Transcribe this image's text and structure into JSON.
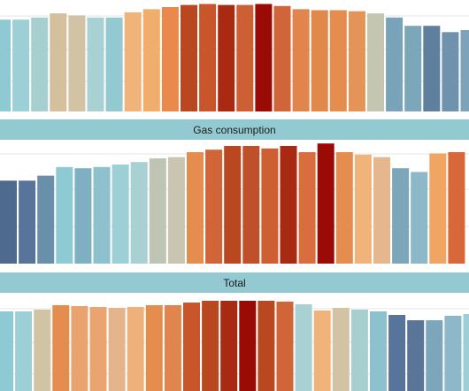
{
  "chart_data": [
    {
      "type": "bar",
      "title": "",
      "grid": true,
      "ylim": [
        0,
        1.0
      ],
      "values": [
        0.88,
        0.88,
        0.9,
        0.94,
        0.92,
        0.9,
        0.9,
        0.95,
        0.98,
        1.0,
        1.02,
        1.03,
        1.02,
        1.02,
        1.03,
        1.01,
        0.98,
        0.97,
        0.97,
        0.96,
        0.94,
        0.9,
        0.82,
        0.82,
        0.76,
        0.78
      ],
      "colors": [
        "#8ecad3",
        "#9ccfd6",
        "#a7cfd0",
        "#d5c09e",
        "#d2c3a4",
        "#a9d0d2",
        "#93c9d1",
        "#f0b47a",
        "#f1ad6b",
        "#e9894c",
        "#b9471f",
        "#c8562a",
        "#a92a12",
        "#cc5f33",
        "#9b0b05",
        "#cf6538",
        "#df854d",
        "#e1894b",
        "#e58d4f",
        "#e59458",
        "#c5c6b2",
        "#78a3b8",
        "#7ca6b9",
        "#5f7f9e",
        "#6f93ad",
        "#7da3b8"
      ]
    },
    {
      "type": "bar",
      "title": "Gas consumption",
      "grid": true,
      "ylim": [
        0,
        1.0
      ],
      "values": [
        0.67,
        0.67,
        0.71,
        0.78,
        0.77,
        0.78,
        0.8,
        0.82,
        0.85,
        0.86,
        0.9,
        0.92,
        0.95,
        0.95,
        0.93,
        0.95,
        0.9,
        0.97,
        0.9,
        0.88,
        0.86,
        0.77,
        0.74,
        0.89,
        0.9
      ],
      "colors": [
        "#4f6a8f",
        "#58749a",
        "#6a8fab",
        "#8ecad3",
        "#7fb0c1",
        "#8cc1cd",
        "#9ccfd6",
        "#a9d0d2",
        "#bec5b4",
        "#c9c5b0",
        "#e58d4f",
        "#cf6538",
        "#b9471f",
        "#c0502a",
        "#cd5f33",
        "#a92a12",
        "#d96d3e",
        "#9b0b05",
        "#e58d4f",
        "#f0b47a",
        "#e5b78e",
        "#7ca6b9",
        "#8cb8c8",
        "#f0a662",
        "#d8683a"
      ]
    },
    {
      "type": "bar",
      "title": "Total",
      "grid": true,
      "ylim": [
        0,
        1.0
      ],
      "values": [
        0.9,
        0.9,
        0.92,
        0.97,
        0.96,
        0.95,
        0.94,
        0.95,
        0.97,
        0.97,
        1.0,
        1.02,
        1.02,
        1.02,
        1.02,
        1.01,
        0.98,
        0.91,
        0.94,
        0.92,
        0.9,
        0.86,
        0.8,
        0.8,
        0.85,
        0.87
      ],
      "colors": [
        "#8ecad3",
        "#9ccfd6",
        "#d2c3a4",
        "#e58d4f",
        "#e8a36e",
        "#e9a470",
        "#e4b48b",
        "#efb17c",
        "#e58d4f",
        "#df854d",
        "#c8562a",
        "#b9471f",
        "#a92a12",
        "#9b0b05",
        "#b9471f",
        "#cf6538",
        "#a9d0d2",
        "#f0b47a",
        "#d2c3a4",
        "#a7cfd0",
        "#8cc1cd",
        "#58749a",
        "#5a7597",
        "#7ca6b9",
        "#8cb8c8",
        "#9ccfd6"
      ]
    }
  ]
}
